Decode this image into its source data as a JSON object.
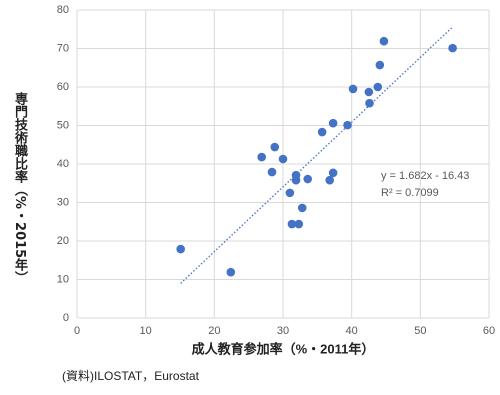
{
  "chart_data": {
    "type": "scatter",
    "x_label": "成人教育参加率（%・2011年）",
    "y_label": "専門技術職比率（%・2015年）",
    "source": "(資料)ILOSTAT，Eurostat",
    "equation": "y = 1.682x - 16.43",
    "r_squared": "R² = 0.7099",
    "color": "#4472c4",
    "grid": true,
    "xlim": [
      0,
      60
    ],
    "xticks": [
      0,
      10,
      20,
      30,
      40,
      50,
      60
    ],
    "ylim": [
      0,
      80
    ],
    "yticks": [
      0,
      10,
      20,
      30,
      40,
      50,
      60,
      70,
      80
    ],
    "x": [
      15.1,
      22.4,
      26.9,
      28.8,
      28.4,
      30.0,
      31.0,
      31.3,
      32.3,
      31.9,
      31.9,
      32.8,
      33.6,
      35.7,
      36.8,
      37.3,
      37.3,
      39.4,
      40.2,
      42.5,
      42.6,
      43.8,
      44.1,
      44.7,
      54.7
    ],
    "values": [
      17.9,
      11.9,
      41.8,
      44.4,
      37.9,
      41.3,
      32.5,
      24.4,
      24.4,
      35.8,
      37.1,
      28.6,
      36.1,
      48.3,
      35.8,
      37.7,
      50.6,
      50.1,
      59.5,
      58.7,
      55.8,
      60.0,
      65.7,
      71.9,
      70.1
    ],
    "trendline": {
      "x": [
        15.1,
        54.7
      ],
      "y": [
        9.0,
        75.6
      ]
    }
  }
}
